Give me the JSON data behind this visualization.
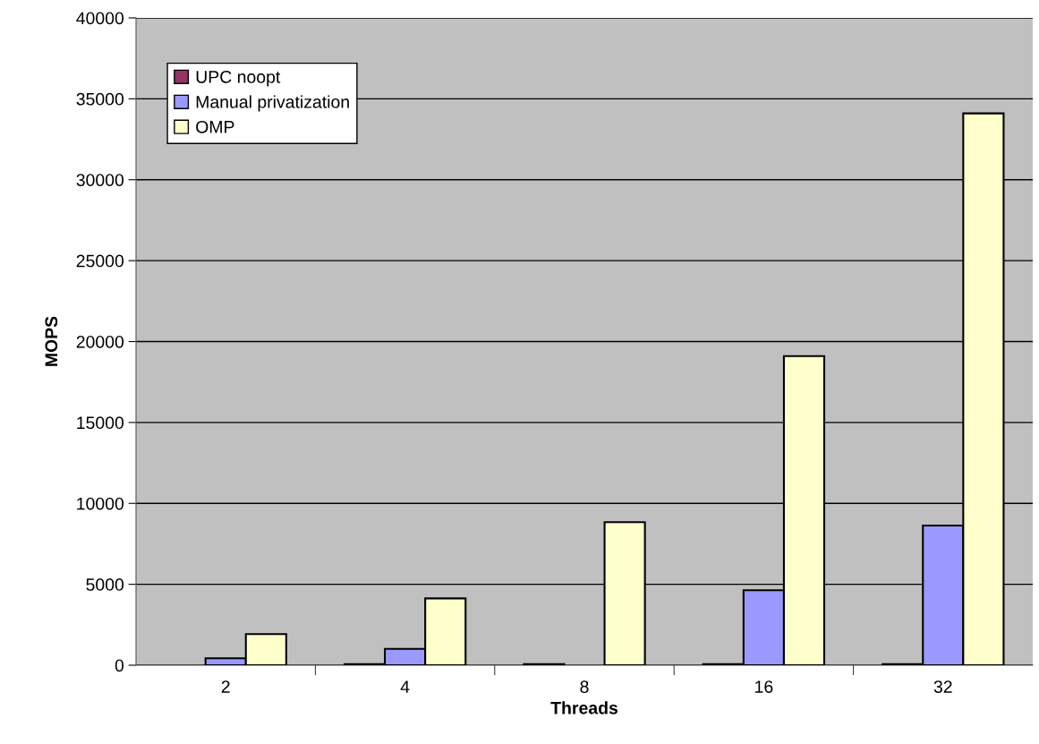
{
  "chart_data": {
    "type": "bar",
    "xlabel": "Threads",
    "ylabel": "MOPS",
    "categories": [
      "2",
      "4",
      "8",
      "16",
      "32"
    ],
    "series": [
      {
        "name": "UPC noopt",
        "color": "#993366",
        "values": [
          null,
          60,
          60,
          60,
          60
        ]
      },
      {
        "name": "Manual privatization",
        "color": "#9999ff",
        "values": [
          430,
          1010,
          null,
          4630,
          8630
        ]
      },
      {
        "name": "OMP",
        "color": "#ffffcc",
        "values": [
          1920,
          4130,
          8840,
          19100,
          34100
        ]
      }
    ],
    "ylim": [
      0,
      40000
    ],
    "yticks": [
      0,
      5000,
      10000,
      15000,
      20000,
      25000,
      30000,
      35000,
      40000
    ],
    "grid": "y",
    "legend": "top left"
  }
}
